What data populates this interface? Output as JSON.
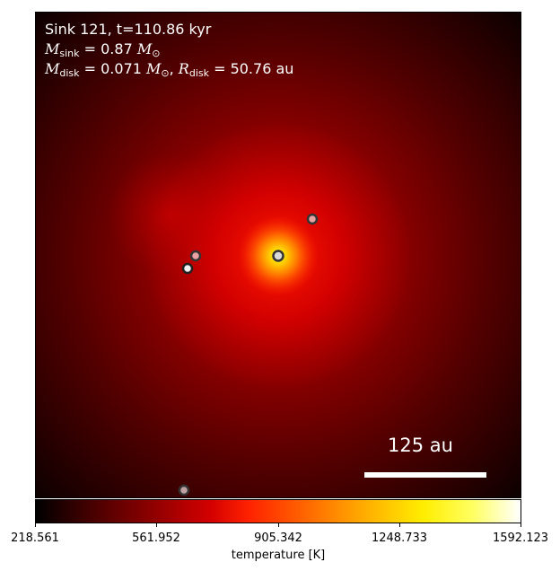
{
  "info": {
    "title": "Sink 121, t=110.86 kyr",
    "m_sink_value": "= 0.87",
    "m_disk_value": "= 0.071",
    "r_disk_value": "= 50.76 au",
    "unit_msun": "M",
    "unit_sun_sub": "⊙"
  },
  "scale_bar": {
    "label": "125 au"
  },
  "colorbar": {
    "label": "temperature [K]",
    "ticks": [
      "218.561",
      "561.952",
      "905.342",
      "1248.733",
      "1592.123"
    ]
  },
  "sinks": [
    {
      "name": "central-sink",
      "fill": "#d9d9d9"
    },
    {
      "name": "sink-upper-right",
      "fill": "#e8a0a0"
    },
    {
      "name": "sink-left-upper",
      "fill": "#e8a0a0"
    },
    {
      "name": "sink-left-lower",
      "fill": "#f0f0f0"
    },
    {
      "name": "sink-bottom",
      "fill": "#c0a0a0"
    }
  ]
}
